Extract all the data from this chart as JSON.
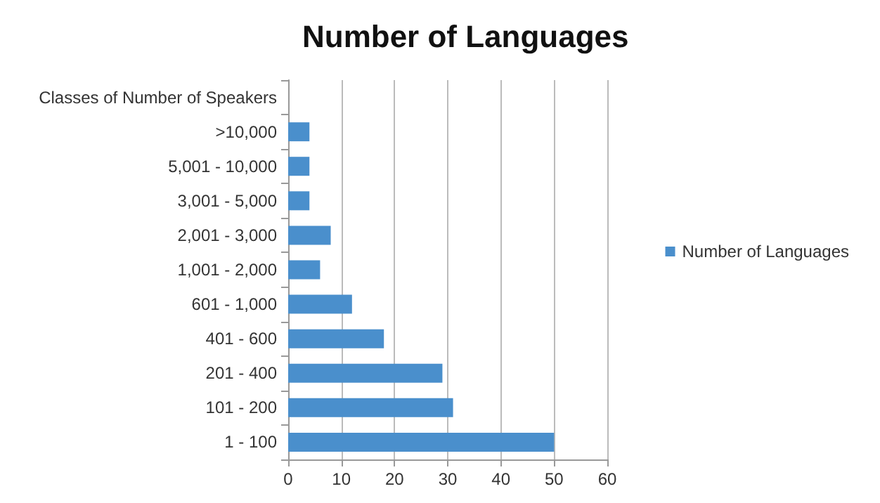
{
  "chart_data": {
    "type": "bar",
    "orientation": "horizontal",
    "title": "Number of Languages",
    "categories": [
      "Classes of Number of Speakers",
      ">10,000",
      "5,001 - 10,000",
      "3,001 - 5,000",
      "2,001 - 3,000",
      "1,001 - 2,000",
      "601 - 1,000",
      "401 - 600",
      "201 - 400",
      "101 - 200",
      "1 - 100"
    ],
    "series": [
      {
        "name": "Number of Languages",
        "color": "#4a8fcc",
        "values": [
          null,
          4,
          4,
          4,
          8,
          6,
          12,
          18,
          29,
          31,
          50
        ]
      }
    ],
    "xlim": [
      0,
      60
    ],
    "xticks": [
      0,
      10,
      20,
      30,
      40,
      50,
      60
    ],
    "grid": "x",
    "legend": "right"
  }
}
